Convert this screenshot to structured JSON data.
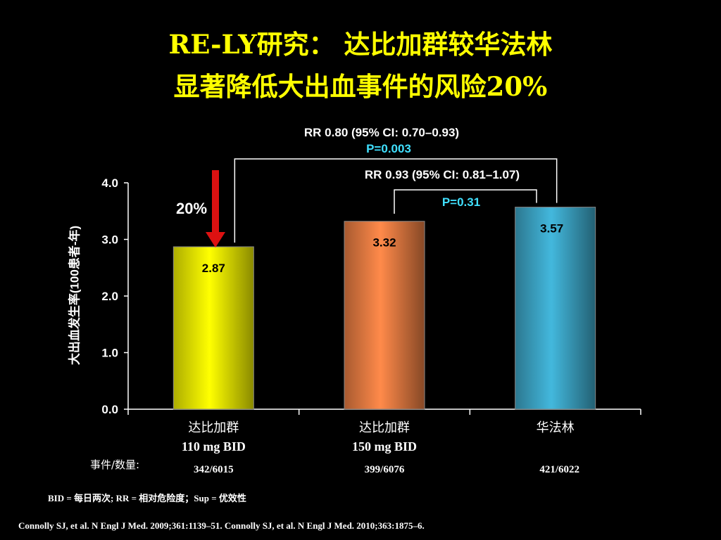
{
  "title": {
    "line1": "RE-LY研究：  达比加群较华法林",
    "line2": "显著降低大出血事件的风险20%"
  },
  "chart_data": {
    "type": "bar",
    "categories": [
      {
        "name": "达比加群",
        "dose": "110 mg BID",
        "events": "342/6015"
      },
      {
        "name": "达比加群",
        "dose": "150 mg BID",
        "events": "399/6076"
      },
      {
        "name": "华法林",
        "dose": "",
        "events": "421/6022"
      }
    ],
    "values": [
      2.87,
      3.32,
      3.57
    ],
    "value_labels": [
      "2.87",
      "3.32",
      "3.57"
    ],
    "colors": [
      "#e6e600",
      "#e07840",
      "#3aa0c0"
    ],
    "ylabel": "大出血发生率(100患者-年)",
    "ylim": [
      0,
      4
    ],
    "yticks": [
      "0.0",
      "1.0",
      "2.0",
      "3.0",
      "4.0"
    ],
    "events_label": "事件/数量:",
    "reduction_label": "20%",
    "comparisons": [
      {
        "rr": "RR 0.80 (95% CI: 0.70–0.93)",
        "p": "P=0.003"
      },
      {
        "rr": "RR 0.93 (95% CI: 0.81–1.07)",
        "p": "P=0.31"
      }
    ],
    "colors_text": {
      "p_value": "#40e0ff",
      "arrow": "#dd1111"
    }
  },
  "footnotes": {
    "abbrev": "BID = 每日两次; RR = 相对危险度；Sup = 优效性",
    "citation": "Connolly SJ, et al. N Engl J Med. 2009;361:1139–51. Connolly SJ, et al. N Engl J Med. 2010;363:1875–6."
  }
}
